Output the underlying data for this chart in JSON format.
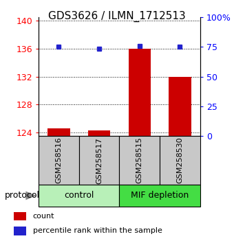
{
  "title": "GDS3626 / ILMN_1712513",
  "samples": [
    "GSM258516",
    "GSM258517",
    "GSM258515",
    "GSM258530"
  ],
  "count_values": [
    124.65,
    124.3,
    136.0,
    132.0
  ],
  "percentile_values": [
    75.0,
    73.5,
    75.5,
    75.0
  ],
  "ylim_left": [
    123.5,
    140.5
  ],
  "ylim_right": [
    0,
    100
  ],
  "yticks_left": [
    124,
    128,
    132,
    136,
    140
  ],
  "yticks_right": [
    0,
    25,
    50,
    75,
    100
  ],
  "ytick_labels_right": [
    "0",
    "25",
    "50",
    "75",
    "100%"
  ],
  "bar_color": "#cc0000",
  "dot_color": "#2222cc",
  "legend_count": "count",
  "legend_percentile": "percentile rank within the sample",
  "protocol_label": "protocol",
  "control_color": "#b8f0b8",
  "mif_color": "#44dd44",
  "sample_box_color": "#c8c8c8",
  "bar_width": 0.55,
  "base_value": 123.5,
  "title_fontsize": 11,
  "tick_fontsize": 9,
  "label_fontsize": 8,
  "group_fontsize": 9,
  "legend_fontsize": 8
}
